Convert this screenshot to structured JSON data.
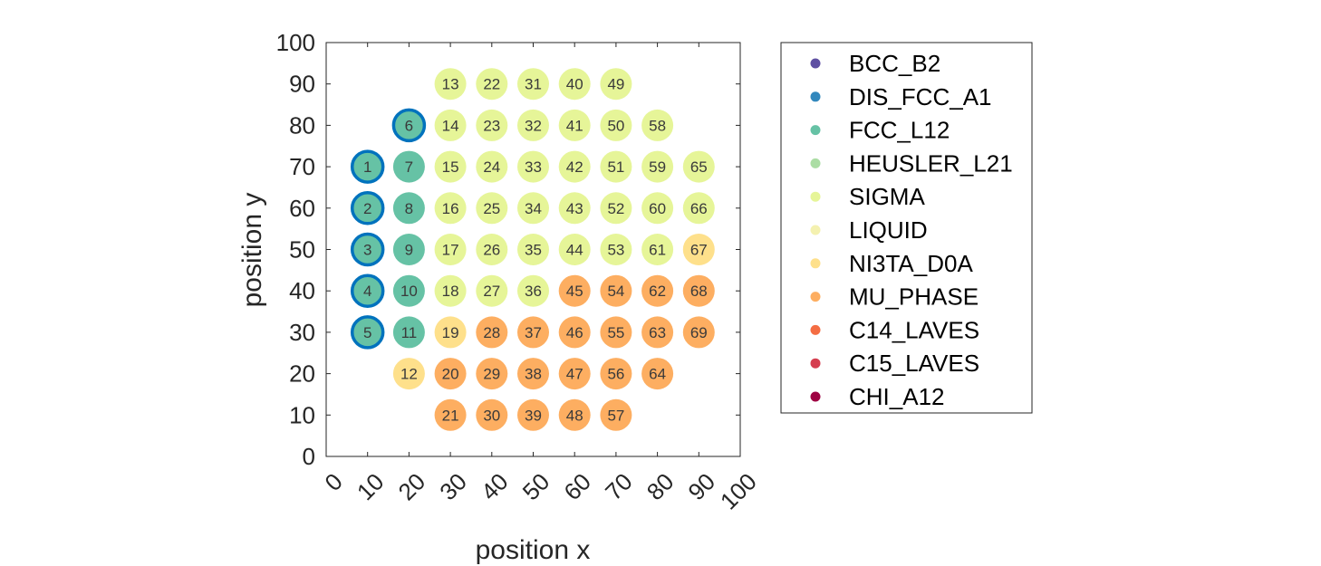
{
  "chart_data": {
    "type": "scatter",
    "title": "",
    "xlabel": "position x",
    "ylabel": "position y",
    "xlim": [
      0,
      100
    ],
    "ylim": [
      0,
      100
    ],
    "xticks": [
      "0",
      "10",
      "20",
      "30",
      "40",
      "50",
      "60",
      "70",
      "80",
      "90",
      "100"
    ],
    "yticks": [
      "0",
      "10",
      "20",
      "30",
      "40",
      "50",
      "60",
      "70",
      "80",
      "90",
      "100"
    ],
    "grid": false,
    "legend_position": "right",
    "legend": [
      {
        "name": "BCC_B2",
        "color": "#5e4fa2"
      },
      {
        "name": "DIS_FCC_A1",
        "color": "#3288bd"
      },
      {
        "name": "FCC_L12",
        "color": "#66c2a5"
      },
      {
        "name": "HEUSLER_L21",
        "color": "#abdda4"
      },
      {
        "name": "SIGMA",
        "color": "#e6f598"
      },
      {
        "name": "LIQUID",
        "color": "#f4f1b0"
      },
      {
        "name": "NI3TA_D0A",
        "color": "#fee08b"
      },
      {
        "name": "MU_PHASE",
        "color": "#fdae61"
      },
      {
        "name": "C14_LAVES",
        "color": "#f46d43"
      },
      {
        "name": "C15_LAVES",
        "color": "#d53e4f"
      },
      {
        "name": "CHI_A12",
        "color": "#9e0142"
      }
    ],
    "highlight_color": "#0072bd",
    "points": [
      {
        "id": "1",
        "x": 10,
        "y": 70,
        "phase": "FCC_L12",
        "highlight": true
      },
      {
        "id": "2",
        "x": 10,
        "y": 60,
        "phase": "FCC_L12",
        "highlight": true
      },
      {
        "id": "3",
        "x": 10,
        "y": 50,
        "phase": "FCC_L12",
        "highlight": true
      },
      {
        "id": "4",
        "x": 10,
        "y": 40,
        "phase": "FCC_L12",
        "highlight": true
      },
      {
        "id": "5",
        "x": 10,
        "y": 30,
        "phase": "FCC_L12",
        "highlight": true
      },
      {
        "id": "6",
        "x": 20,
        "y": 80,
        "phase": "FCC_L12",
        "highlight": true
      },
      {
        "id": "7",
        "x": 20,
        "y": 70,
        "phase": "FCC_L12",
        "highlight": false
      },
      {
        "id": "8",
        "x": 20,
        "y": 60,
        "phase": "FCC_L12",
        "highlight": false
      },
      {
        "id": "9",
        "x": 20,
        "y": 50,
        "phase": "FCC_L12",
        "highlight": false
      },
      {
        "id": "10",
        "x": 20,
        "y": 40,
        "phase": "FCC_L12",
        "highlight": false
      },
      {
        "id": "11",
        "x": 20,
        "y": 30,
        "phase": "FCC_L12",
        "highlight": false
      },
      {
        "id": "12",
        "x": 20,
        "y": 20,
        "phase": "NI3TA_D0A",
        "highlight": false
      },
      {
        "id": "13",
        "x": 30,
        "y": 90,
        "phase": "SIGMA",
        "highlight": false
      },
      {
        "id": "14",
        "x": 30,
        "y": 80,
        "phase": "SIGMA",
        "highlight": false
      },
      {
        "id": "15",
        "x": 30,
        "y": 70,
        "phase": "SIGMA",
        "highlight": false
      },
      {
        "id": "16",
        "x": 30,
        "y": 60,
        "phase": "SIGMA",
        "highlight": false
      },
      {
        "id": "17",
        "x": 30,
        "y": 50,
        "phase": "SIGMA",
        "highlight": false
      },
      {
        "id": "18",
        "x": 30,
        "y": 40,
        "phase": "SIGMA",
        "highlight": false
      },
      {
        "id": "19",
        "x": 30,
        "y": 30,
        "phase": "NI3TA_D0A",
        "highlight": false
      },
      {
        "id": "20",
        "x": 30,
        "y": 20,
        "phase": "MU_PHASE",
        "highlight": false
      },
      {
        "id": "21",
        "x": 30,
        "y": 10,
        "phase": "MU_PHASE",
        "highlight": false
      },
      {
        "id": "22",
        "x": 40,
        "y": 90,
        "phase": "SIGMA",
        "highlight": false
      },
      {
        "id": "23",
        "x": 40,
        "y": 80,
        "phase": "SIGMA",
        "highlight": false
      },
      {
        "id": "24",
        "x": 40,
        "y": 70,
        "phase": "SIGMA",
        "highlight": false
      },
      {
        "id": "25",
        "x": 40,
        "y": 60,
        "phase": "SIGMA",
        "highlight": false
      },
      {
        "id": "26",
        "x": 40,
        "y": 50,
        "phase": "SIGMA",
        "highlight": false
      },
      {
        "id": "27",
        "x": 40,
        "y": 40,
        "phase": "SIGMA",
        "highlight": false
      },
      {
        "id": "28",
        "x": 40,
        "y": 30,
        "phase": "MU_PHASE",
        "highlight": false
      },
      {
        "id": "29",
        "x": 40,
        "y": 20,
        "phase": "MU_PHASE",
        "highlight": false
      },
      {
        "id": "30",
        "x": 40,
        "y": 10,
        "phase": "MU_PHASE",
        "highlight": false
      },
      {
        "id": "31",
        "x": 50,
        "y": 90,
        "phase": "SIGMA",
        "highlight": false
      },
      {
        "id": "32",
        "x": 50,
        "y": 80,
        "phase": "SIGMA",
        "highlight": false
      },
      {
        "id": "33",
        "x": 50,
        "y": 70,
        "phase": "SIGMA",
        "highlight": false
      },
      {
        "id": "34",
        "x": 50,
        "y": 60,
        "phase": "SIGMA",
        "highlight": false
      },
      {
        "id": "35",
        "x": 50,
        "y": 50,
        "phase": "SIGMA",
        "highlight": false
      },
      {
        "id": "36",
        "x": 50,
        "y": 40,
        "phase": "SIGMA",
        "highlight": false
      },
      {
        "id": "37",
        "x": 50,
        "y": 30,
        "phase": "MU_PHASE",
        "highlight": false
      },
      {
        "id": "38",
        "x": 50,
        "y": 20,
        "phase": "MU_PHASE",
        "highlight": false
      },
      {
        "id": "39",
        "x": 50,
        "y": 10,
        "phase": "MU_PHASE",
        "highlight": false
      },
      {
        "id": "40",
        "x": 60,
        "y": 90,
        "phase": "SIGMA",
        "highlight": false
      },
      {
        "id": "41",
        "x": 60,
        "y": 80,
        "phase": "SIGMA",
        "highlight": false
      },
      {
        "id": "42",
        "x": 60,
        "y": 70,
        "phase": "SIGMA",
        "highlight": false
      },
      {
        "id": "43",
        "x": 60,
        "y": 60,
        "phase": "SIGMA",
        "highlight": false
      },
      {
        "id": "44",
        "x": 60,
        "y": 50,
        "phase": "SIGMA",
        "highlight": false
      },
      {
        "id": "45",
        "x": 60,
        "y": 40,
        "phase": "MU_PHASE",
        "highlight": false
      },
      {
        "id": "46",
        "x": 60,
        "y": 30,
        "phase": "MU_PHASE",
        "highlight": false
      },
      {
        "id": "47",
        "x": 60,
        "y": 20,
        "phase": "MU_PHASE",
        "highlight": false
      },
      {
        "id": "48",
        "x": 60,
        "y": 10,
        "phase": "MU_PHASE",
        "highlight": false
      },
      {
        "id": "49",
        "x": 70,
        "y": 90,
        "phase": "SIGMA",
        "highlight": false
      },
      {
        "id": "50",
        "x": 70,
        "y": 80,
        "phase": "SIGMA",
        "highlight": false
      },
      {
        "id": "51",
        "x": 70,
        "y": 70,
        "phase": "SIGMA",
        "highlight": false
      },
      {
        "id": "52",
        "x": 70,
        "y": 60,
        "phase": "SIGMA",
        "highlight": false
      },
      {
        "id": "53",
        "x": 70,
        "y": 50,
        "phase": "SIGMA",
        "highlight": false
      },
      {
        "id": "54",
        "x": 70,
        "y": 40,
        "phase": "MU_PHASE",
        "highlight": false
      },
      {
        "id": "55",
        "x": 70,
        "y": 30,
        "phase": "MU_PHASE",
        "highlight": false
      },
      {
        "id": "56",
        "x": 70,
        "y": 20,
        "phase": "MU_PHASE",
        "highlight": false
      },
      {
        "id": "57",
        "x": 70,
        "y": 10,
        "phase": "MU_PHASE",
        "highlight": false
      },
      {
        "id": "58",
        "x": 80,
        "y": 80,
        "phase": "SIGMA",
        "highlight": false
      },
      {
        "id": "59",
        "x": 80,
        "y": 70,
        "phase": "SIGMA",
        "highlight": false
      },
      {
        "id": "60",
        "x": 80,
        "y": 60,
        "phase": "SIGMA",
        "highlight": false
      },
      {
        "id": "61",
        "x": 80,
        "y": 50,
        "phase": "SIGMA",
        "highlight": false
      },
      {
        "id": "62",
        "x": 80,
        "y": 40,
        "phase": "MU_PHASE",
        "highlight": false
      },
      {
        "id": "63",
        "x": 80,
        "y": 30,
        "phase": "MU_PHASE",
        "highlight": false
      },
      {
        "id": "64",
        "x": 80,
        "y": 20,
        "phase": "MU_PHASE",
        "highlight": false
      },
      {
        "id": "65",
        "x": 90,
        "y": 70,
        "phase": "SIGMA",
        "highlight": false
      },
      {
        "id": "66",
        "x": 90,
        "y": 60,
        "phase": "SIGMA",
        "highlight": false
      },
      {
        "id": "67",
        "x": 90,
        "y": 50,
        "phase": "NI3TA_D0A",
        "highlight": false
      },
      {
        "id": "68",
        "x": 90,
        "y": 40,
        "phase": "MU_PHASE",
        "highlight": false
      },
      {
        "id": "69",
        "x": 90,
        "y": 30,
        "phase": "MU_PHASE",
        "highlight": false
      }
    ]
  }
}
